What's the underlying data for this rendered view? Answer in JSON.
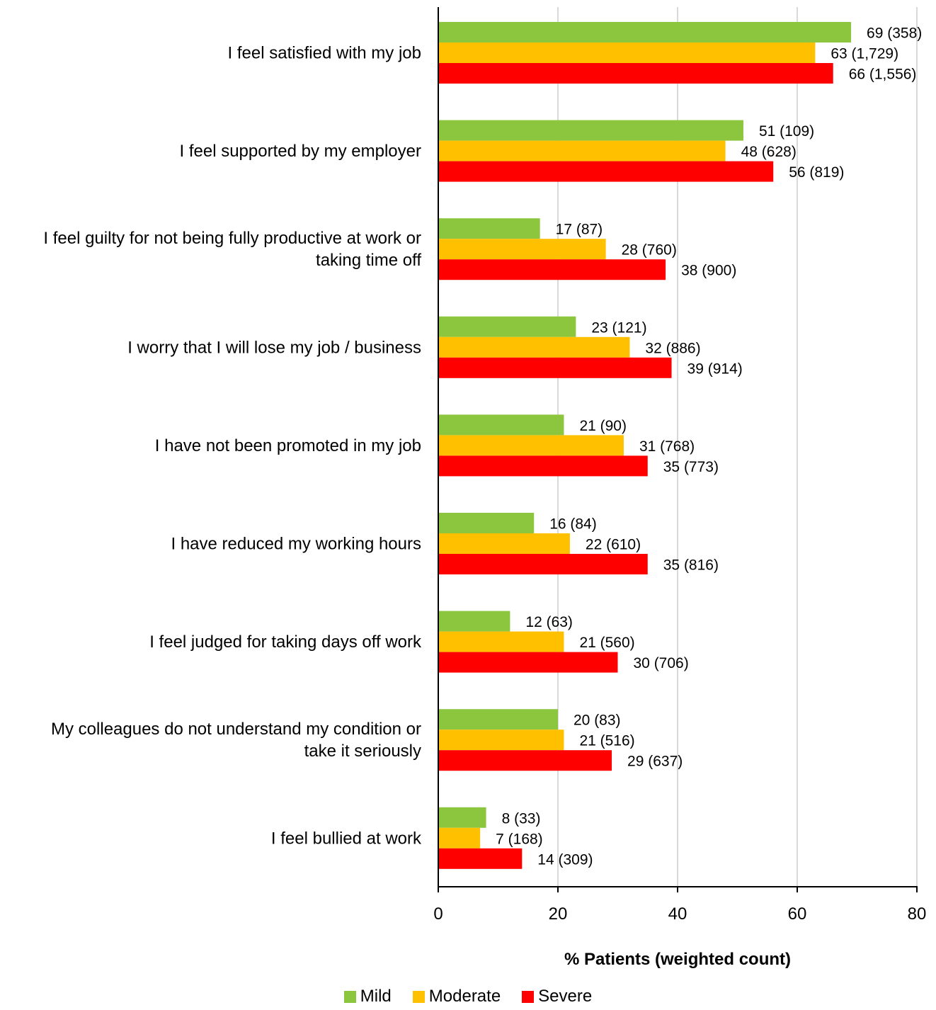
{
  "chart_data": {
    "type": "bar",
    "orientation": "horizontal",
    "xlabel": "% Patients (weighted count)",
    "xlim": [
      0,
      80
    ],
    "xticks": [
      0,
      20,
      40,
      60,
      80
    ],
    "grid": true,
    "legend_position": "bottom-center",
    "categories": [
      "I feel satisfied with my job",
      "I feel supported by my employer",
      "I feel guilty for not being fully productive at work or taking time off",
      "I worry that I will lose my job / business",
      "I have not been promoted in my job",
      "I have reduced my working hours",
      "I feel judged for taking days off work",
      "My colleagues do not understand my condition or take it seriously",
      "I feel bullied at work"
    ],
    "category_lines": [
      [
        "I feel satisfied with my job"
      ],
      [
        "I feel supported by my employer"
      ],
      [
        "I feel guilty for not being fully productive at work or",
        "taking time off"
      ],
      [
        "I worry that I will lose my job / business"
      ],
      [
        "I have not been promoted in my job"
      ],
      [
        "I have reduced my working hours"
      ],
      [
        "I feel judged for taking days off work"
      ],
      [
        "My colleagues do not understand my condition or",
        "take it seriously"
      ],
      [
        "I feel bullied at work"
      ]
    ],
    "series": [
      {
        "name": "Mild",
        "color": "#8cc63f",
        "values": [
          69,
          51,
          17,
          23,
          21,
          16,
          12,
          20,
          8
        ],
        "labels": [
          "69 (358)",
          "51 (109)",
          "17 (87)",
          "23 (121)",
          "21 (90)",
          "16 (84)",
          "12 (63)",
          "20 (83)",
          "8 (33)"
        ]
      },
      {
        "name": "Moderate",
        "color": "#ffc000",
        "values": [
          63,
          48,
          28,
          32,
          31,
          22,
          21,
          21,
          7
        ],
        "labels": [
          "63 (1,729)",
          "48 (628)",
          "28 (760)",
          "32 (886)",
          "31 (768)",
          "22 (610)",
          "21 (560)",
          "21 (516)",
          "7 (168)"
        ]
      },
      {
        "name": "Severe",
        "color": "#ff0000",
        "values": [
          66,
          56,
          38,
          39,
          35,
          35,
          30,
          29,
          14
        ],
        "labels": [
          "66 (1,556)",
          "56 (819)",
          "38 (900)",
          "39 (914)",
          "35 (773)",
          "35 (816)",
          "30 (706)",
          "29 (637)",
          "14 (309)"
        ]
      }
    ]
  }
}
